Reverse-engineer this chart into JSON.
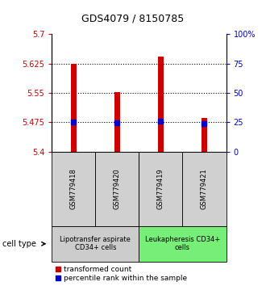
{
  "title": "GDS4079 / 8150785",
  "samples": [
    "GSM779418",
    "GSM779420",
    "GSM779419",
    "GSM779421"
  ],
  "red_values": [
    5.625,
    5.552,
    5.643,
    5.487
  ],
  "blue_values": [
    5.475,
    5.473,
    5.478,
    5.472
  ],
  "ylim_left": [
    5.4,
    5.7
  ],
  "ylim_right": [
    0,
    100
  ],
  "left_ticks": [
    5.4,
    5.475,
    5.55,
    5.625,
    5.7
  ],
  "right_ticks": [
    0,
    25,
    50,
    75,
    100
  ],
  "dotted_lines": [
    5.625,
    5.55,
    5.475
  ],
  "groups": [
    {
      "label": "Lipotransfer aspirate\nCD34+ cells",
      "span": [
        0,
        1
      ],
      "color": "#cccccc"
    },
    {
      "label": "Leukapheresis CD34+\ncells",
      "span": [
        2,
        3
      ],
      "color": "#77ee77"
    }
  ],
  "bar_color": "#cc0000",
  "dot_color": "#0000cc",
  "cell_type_label": "cell type",
  "legend_red": "transformed count",
  "legend_blue": "percentile rank within the sample",
  "left_axis_color": "#cc0000",
  "right_axis_color": "#0000cc",
  "title_fontsize": 9,
  "tick_fontsize": 7,
  "sample_fontsize": 6,
  "group_fontsize": 6,
  "legend_fontsize": 6.5
}
